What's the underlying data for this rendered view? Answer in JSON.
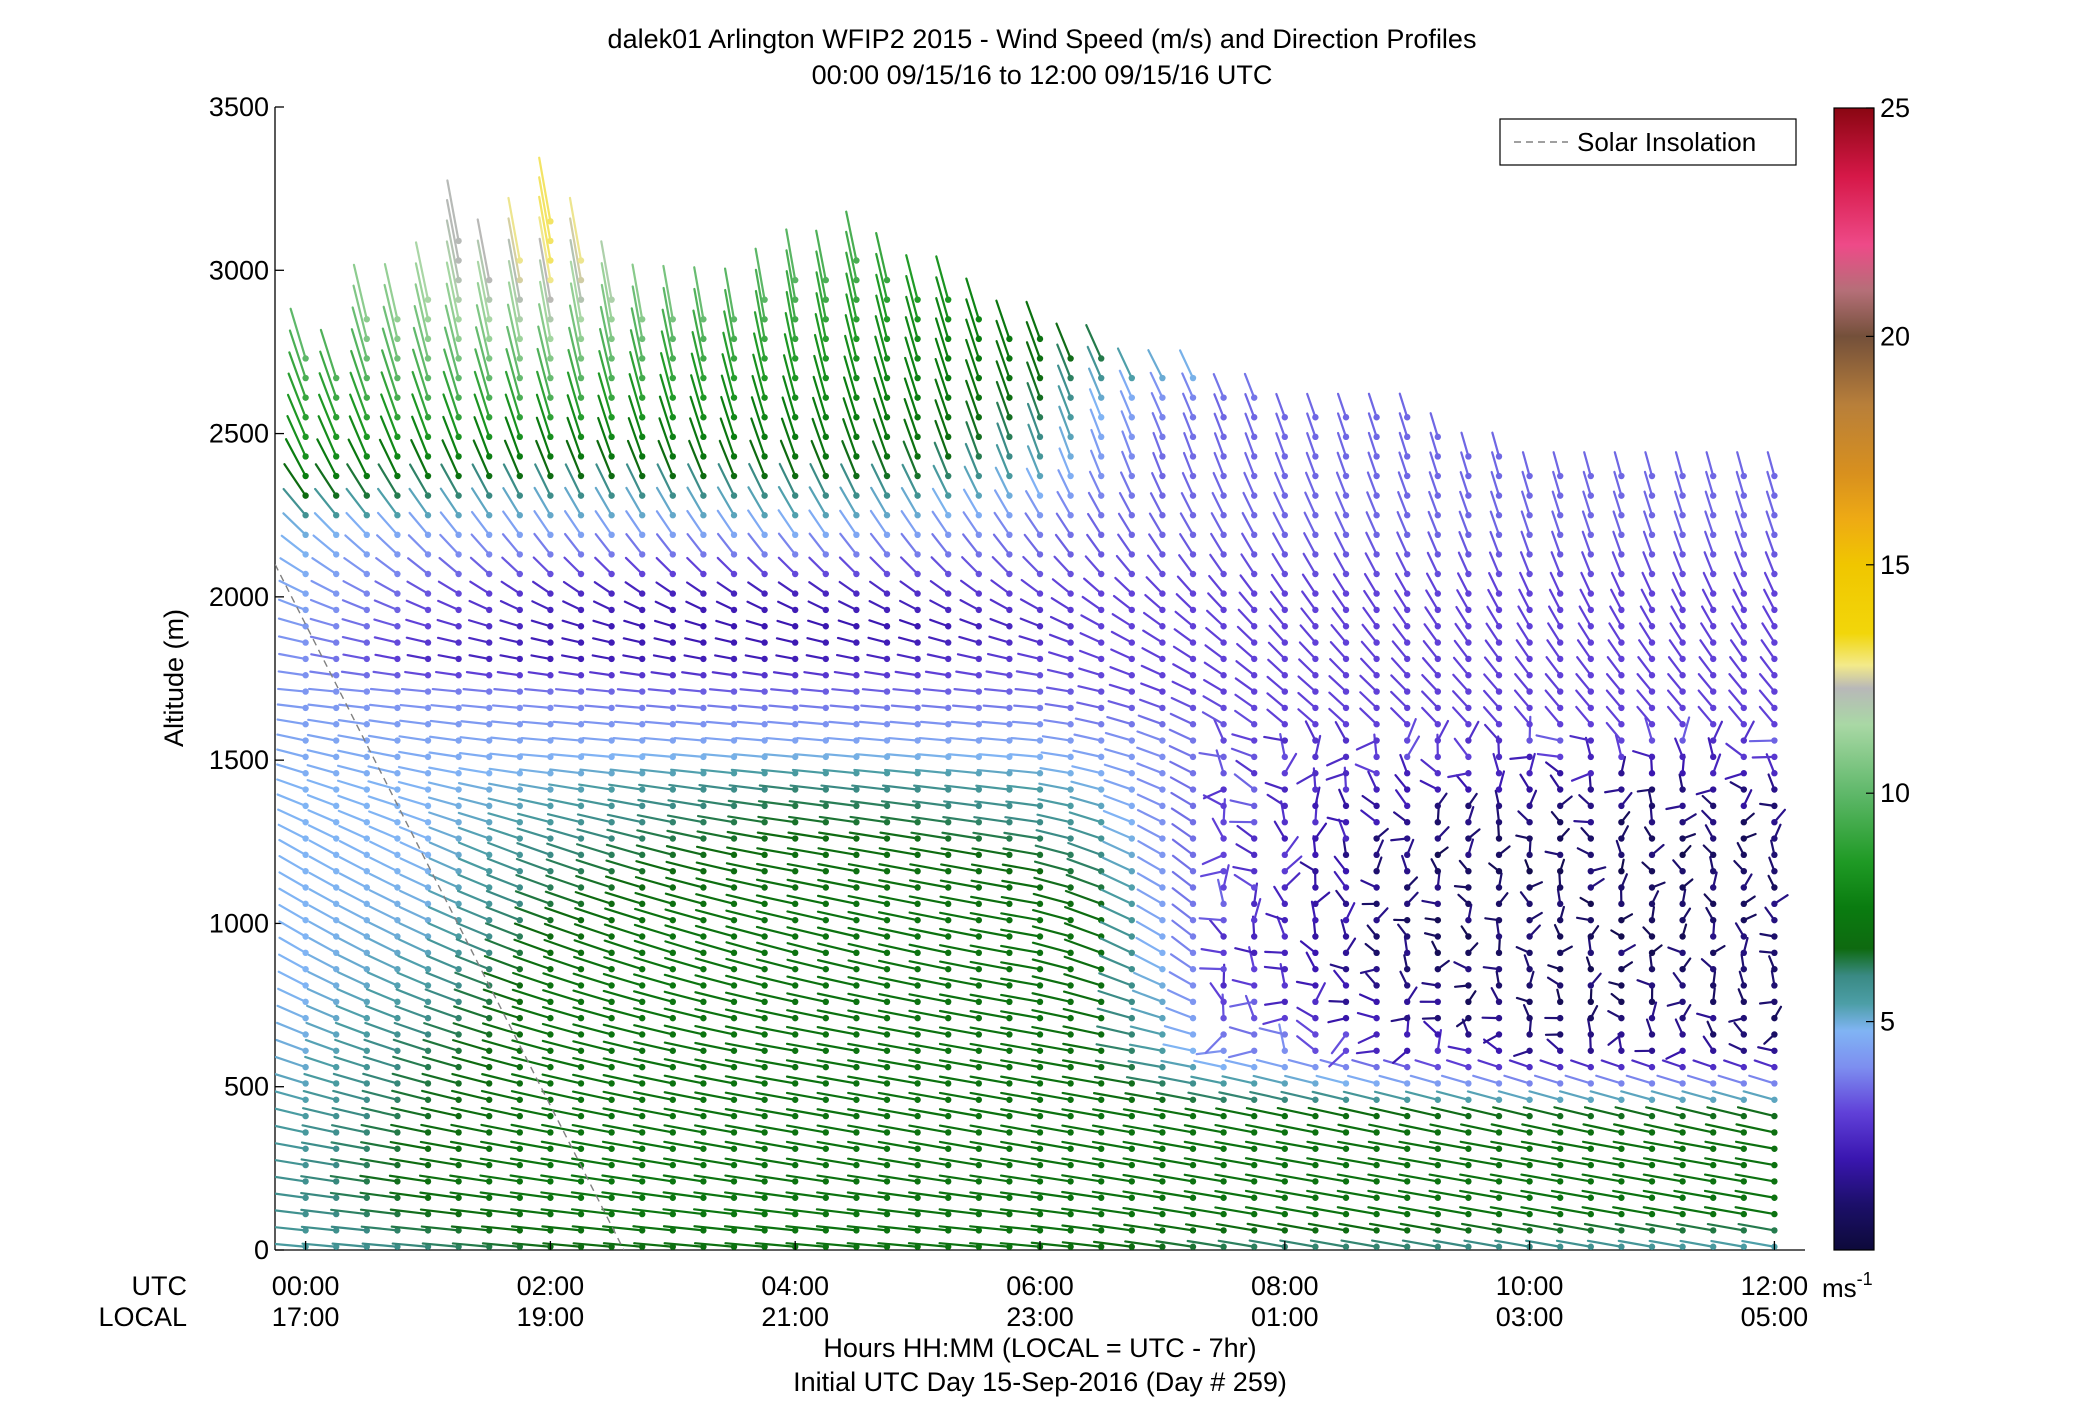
{
  "chart_data": {
    "type": "wind-barb-profile",
    "title": "dalek01 Arlington WFIP2 2015 - Wind Speed (m/s) and Direction Profiles",
    "subtitle": "00:00 09/15/16 to 12:00 09/15/16  UTC",
    "ylabel": "Altitude (m)",
    "ylim": [
      0,
      3500
    ],
    "yticks": [
      "0",
      "500",
      "1000",
      "1500",
      "2000",
      "2500",
      "3000",
      "3500"
    ],
    "xlim_hours": [
      -0.25,
      12.25
    ],
    "xticks_hours": [
      0,
      2,
      4,
      6,
      8,
      10,
      12
    ],
    "xtick_utc": [
      "00:00",
      "02:00",
      "04:00",
      "06:00",
      "08:00",
      "10:00",
      "12:00"
    ],
    "xtick_local": [
      "17:00",
      "19:00",
      "21:00",
      "23:00",
      "01:00",
      "03:00",
      "05:00"
    ],
    "row_label_utc": "UTC",
    "row_label_local": "LOCAL",
    "xlabel_1": "Hours HH:MM  (LOCAL = UTC - 7hr)",
    "xlabel_2": "Initial UTC Day 15-Sep-2016 (Day # 259)",
    "legend": [
      {
        "label": "Solar Insolation",
        "style": "dashed",
        "color": "#808080"
      }
    ],
    "legend_position": "top-right",
    "colorbar": {
      "range": [
        0,
        25
      ],
      "ticks": [
        "5",
        "10",
        "15",
        "20",
        "25"
      ],
      "unit_label": "ms",
      "unit_exp": "-1",
      "stops": [
        [
          0.0,
          "#0d0a3a"
        ],
        [
          1.0,
          "#1c0f6a"
        ],
        [
          2.0,
          "#3a16b0"
        ],
        [
          3.0,
          "#6040d8"
        ],
        [
          4.0,
          "#7d8ef0"
        ],
        [
          4.8,
          "#80b4f4"
        ],
        [
          5.4,
          "#4c9ea6"
        ],
        [
          6.0,
          "#3a8a84"
        ],
        [
          6.6,
          "#0e6a10"
        ],
        [
          7.5,
          "#0a7c10"
        ],
        [
          8.5,
          "#1f9a25"
        ],
        [
          10.0,
          "#5fb86a"
        ],
        [
          11.5,
          "#a9d8a5"
        ],
        [
          12.3,
          "#b8b8b8"
        ],
        [
          12.8,
          "#f3ea8a"
        ],
        [
          13.5,
          "#f2d60a"
        ],
        [
          15.0,
          "#f0c600"
        ],
        [
          16.0,
          "#eeaa14"
        ],
        [
          17.0,
          "#d8901e"
        ],
        [
          18.5,
          "#b87f3a"
        ],
        [
          20.0,
          "#74503a"
        ],
        [
          21.0,
          "#b56f78"
        ],
        [
          22.0,
          "#ee4a88"
        ],
        [
          23.5,
          "#d61848"
        ],
        [
          25.0,
          "#8a0612"
        ]
      ]
    },
    "solar_insolation_line": {
      "hours": [
        -0.25,
        2.6
      ],
      "altitude_m": [
        2100,
        0
      ]
    },
    "profiles": {
      "time_step_hours": 0.25,
      "times_hours": [
        0,
        12
      ],
      "top_altitude_m": [
        [
          0,
          2750
        ],
        [
          0.25,
          2700
        ],
        [
          0.5,
          2850
        ],
        [
          1.0,
          2950
        ],
        [
          1.25,
          3100
        ],
        [
          1.5,
          3000
        ],
        [
          2.0,
          3150
        ],
        [
          2.5,
          2950
        ],
        [
          3.0,
          2850
        ],
        [
          3.5,
          2900
        ],
        [
          4.0,
          3000
        ],
        [
          4.5,
          3050
        ],
        [
          5.0,
          2950
        ],
        [
          6.0,
          2800
        ],
        [
          7.0,
          2700
        ],
        [
          8.0,
          2600
        ],
        [
          9.0,
          2550
        ],
        [
          10.0,
          2400
        ],
        [
          11.0,
          2380
        ],
        [
          12.0,
          2400
        ]
      ],
      "wind_speed_ms": {
        "hours": [
          0,
          1,
          2,
          3,
          4,
          5,
          6,
          6.5,
          7,
          7.5,
          8,
          9,
          10,
          11,
          12
        ],
        "altitude_m": [
          0,
          100,
          200,
          400,
          600,
          800,
          1000,
          1200,
          1400,
          1550,
          1700,
          1800,
          1900,
          2000,
          2200,
          2400,
          2600,
          2800,
          3000,
          3200
        ],
        "speed": [
          [
            5.5,
            6.0,
            6.5,
            6.8,
            7.0,
            7.0,
            7.0,
            6.8,
            6.5,
            6.2,
            6.0,
            6.0,
            5.8,
            5.5,
            5.2
          ],
          [
            5.8,
            6.5,
            7.0,
            7.2,
            7.2,
            7.0,
            7.0,
            7.0,
            7.0,
            7.0,
            7.0,
            7.0,
            7.0,
            7.0,
            7.0
          ],
          [
            5.8,
            6.8,
            7.2,
            7.2,
            7.0,
            7.0,
            7.0,
            7.0,
            7.0,
            7.0,
            7.0,
            7.0,
            7.0,
            7.0,
            7.0
          ],
          [
            5.5,
            6.5,
            7.0,
            7.0,
            7.0,
            7.0,
            7.0,
            7.0,
            7.0,
            7.0,
            7.0,
            6.8,
            6.8,
            6.8,
            6.8
          ],
          [
            5.0,
            6.2,
            7.0,
            7.0,
            7.0,
            7.0,
            7.0,
            6.8,
            5.5,
            4.2,
            3.8,
            2.5,
            1.5,
            1.5,
            1.5
          ],
          [
            4.8,
            5.5,
            7.0,
            7.2,
            7.0,
            7.0,
            7.0,
            6.8,
            5.0,
            3.0,
            2.5,
            1.0,
            0.8,
            0.8,
            1.0
          ],
          [
            4.8,
            5.0,
            6.5,
            7.0,
            7.0,
            7.0,
            7.0,
            6.8,
            4.5,
            3.0,
            2.5,
            1.0,
            0.8,
            0.8,
            1.0
          ],
          [
            4.8,
            4.8,
            6.0,
            6.5,
            6.8,
            6.8,
            6.5,
            6.0,
            4.2,
            3.0,
            2.5,
            1.0,
            0.8,
            0.8,
            1.0
          ],
          [
            4.8,
            4.8,
            5.2,
            5.8,
            6.2,
            6.0,
            5.5,
            5.0,
            4.0,
            3.2,
            2.8,
            2.0,
            1.5,
            1.2,
            1.5
          ],
          [
            4.5,
            4.5,
            4.5,
            4.5,
            4.5,
            4.5,
            4.5,
            4.2,
            4.0,
            3.5,
            3.0,
            3.0,
            3.0,
            3.0,
            3.0
          ],
          [
            4.2,
            4.0,
            3.8,
            3.5,
            3.5,
            3.5,
            3.5,
            3.2,
            3.0,
            3.0,
            3.0,
            3.0,
            3.0,
            3.0,
            3.0
          ],
          [
            4.0,
            2.5,
            2.2,
            2.2,
            2.2,
            2.5,
            3.0,
            3.0,
            3.0,
            3.0,
            3.0,
            3.0,
            3.0,
            3.0,
            3.0
          ],
          [
            4.2,
            3.0,
            2.2,
            2.0,
            2.0,
            2.0,
            2.5,
            3.0,
            3.0,
            3.0,
            3.0,
            3.0,
            3.0,
            3.0,
            3.0
          ],
          [
            4.5,
            3.2,
            2.5,
            2.2,
            2.2,
            2.5,
            3.0,
            3.0,
            3.0,
            3.0,
            3.0,
            3.0,
            3.0,
            3.0,
            3.0
          ],
          [
            5.0,
            4.5,
            4.5,
            4.5,
            4.8,
            4.5,
            3.8,
            3.5,
            3.5,
            3.5,
            3.5,
            3.5,
            3.5,
            3.5,
            3.5
          ],
          [
            8.0,
            7.5,
            7.0,
            7.0,
            7.0,
            6.8,
            5.5,
            4.2,
            3.5,
            3.5,
            3.5,
            3.5,
            3.5,
            3.5,
            3.5
          ],
          [
            9.0,
            9.5,
            9.5,
            8.5,
            8.0,
            7.5,
            6.5,
            5.0,
            4.0,
            3.5,
            3.5,
            3.5,
            3.5,
            3.5,
            3.5
          ],
          [
            10.5,
            11.0,
            11.5,
            10.0,
            9.0,
            8.0,
            7.0,
            7.0,
            7.0,
            7.0,
            7.0,
            7.0,
            7.0,
            7.0,
            7.0
          ],
          [
            11.0,
            12.0,
            13.0,
            12.0,
            10.0,
            9.0,
            8.0,
            8.0,
            8.0,
            8.0,
            8.0,
            8.0,
            8.0,
            8.0,
            8.0
          ],
          [
            11.0,
            12.0,
            13.0,
            12.0,
            10.0,
            9.0,
            8.0,
            8.0,
            8.0,
            8.0,
            8.0,
            8.0,
            8.0,
            8.0,
            8.0
          ]
        ]
      },
      "wind_direction_deg": {
        "hours": [
          0,
          2,
          4,
          6,
          7,
          8,
          10,
          12
        ],
        "altitude_m": [
          0,
          300,
          600,
          900,
          1200,
          1500,
          1700,
          1900,
          2100,
          2400,
          2800,
          3200
        ],
        "direction_from": [
          [
            275,
            275,
            275,
            275,
            278,
            280,
            280,
            280
          ],
          [
            280,
            280,
            280,
            280,
            280,
            280,
            280,
            280
          ],
          [
            290,
            285,
            280,
            280,
            280,
            285,
            290,
            290
          ],
          [
            300,
            290,
            285,
            280,
            300,
            330,
            350,
            350
          ],
          [
            300,
            290,
            280,
            280,
            300,
            330,
            360,
            360
          ],
          [
            285,
            275,
            275,
            275,
            290,
            310,
            320,
            320
          ],
          [
            275,
            275,
            275,
            275,
            290,
            310,
            320,
            320
          ],
          [
            285,
            285,
            285,
            290,
            305,
            320,
            330,
            330
          ],
          [
            305,
            320,
            320,
            320,
            325,
            330,
            340,
            340
          ],
          [
            335,
            340,
            340,
            340,
            340,
            340,
            345,
            345
          ],
          [
            345,
            350,
            350,
            340,
            330,
            340,
            345,
            345
          ],
          [
            350,
            350,
            350,
            345,
            340,
            340,
            345,
            345
          ]
        ]
      }
    }
  }
}
